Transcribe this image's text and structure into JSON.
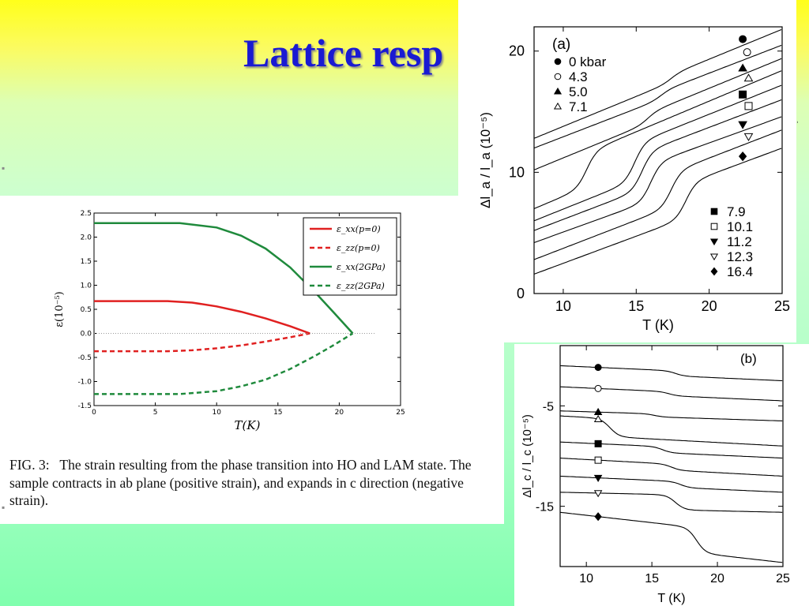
{
  "slide": {
    "title": "Lattice resp"
  },
  "caption": {
    "label": "FIG. 3:",
    "body": "The strain resulting from the phase transition into HO and LAM state. The sample contracts in ab plane (positive strain), and expands in c direction (negative strain)."
  },
  "chart_data": [
    {
      "type": "line",
      "xlabel": "T(K)",
      "ylabel": "ε(10⁻⁵)",
      "xlim": [
        0,
        25
      ],
      "ylim": [
        -1.5,
        2.5
      ],
      "xticks": [
        0,
        5,
        10,
        15,
        20,
        25
      ],
      "yticks": [
        -1.5,
        -1.0,
        -0.5,
        0.0,
        0.5,
        1.0,
        1.5,
        2.0,
        2.5
      ],
      "grid": false,
      "legend_position": "top-right",
      "series": [
        {
          "name": "ε_xx(p=0)",
          "color": "#e02020",
          "style": "solid",
          "x": [
            0,
            6,
            8,
            10,
            12,
            14,
            16,
            17.6
          ],
          "y": [
            0.67,
            0.67,
            0.64,
            0.56,
            0.45,
            0.31,
            0.15,
            0.0
          ]
        },
        {
          "name": "ε_zz(p=0)",
          "color": "#e02020",
          "style": "dashed",
          "x": [
            0,
            6,
            8,
            10,
            12,
            14,
            16,
            17.6
          ],
          "y": [
            -0.37,
            -0.37,
            -0.35,
            -0.31,
            -0.25,
            -0.17,
            -0.08,
            0.0
          ]
        },
        {
          "name": "ε_xx(2GPa)",
          "color": "#1f8a3c",
          "style": "solid",
          "x": [
            0,
            7,
            10,
            12,
            14,
            16,
            18,
            19.5,
            21.1
          ],
          "y": [
            2.29,
            2.29,
            2.2,
            2.03,
            1.76,
            1.37,
            0.86,
            0.45,
            0.0
          ]
        },
        {
          "name": "ε_zz(2GPa)",
          "color": "#1f8a3c",
          "style": "dashed",
          "x": [
            0,
            7,
            10,
            12,
            14,
            16,
            18,
            19.5,
            21.1
          ],
          "y": [
            -1.26,
            -1.26,
            -1.2,
            -1.1,
            -0.96,
            -0.74,
            -0.47,
            -0.25,
            0.0
          ]
        },
        {
          "name": "",
          "color": "#999999",
          "style": "dotted",
          "x": [
            0,
            23
          ],
          "y": [
            0,
            0
          ]
        }
      ]
    },
    {
      "type": "line",
      "panel_label": "(a)",
      "xlabel": "T (K)",
      "ylabel": "Δl_a / l_a (10⁻⁵)",
      "xlim": [
        8,
        25
      ],
      "ylim": [
        0,
        22
      ],
      "xticks": [
        10,
        15,
        20,
        25
      ],
      "yticks": [
        0,
        10,
        20
      ],
      "grid": false,
      "legend_top_left": [
        {
          "marker": "filled-circle",
          "label": "0 kbar"
        },
        {
          "marker": "open-circle",
          "label": "4.3"
        },
        {
          "marker": "filled-triangle-up",
          "label": "5.0"
        },
        {
          "marker": "open-triangle-up",
          "label": "7.1"
        }
      ],
      "legend_bottom_right": [
        {
          "marker": "filled-square",
          "label": "7.9"
        },
        {
          "marker": "open-square",
          "label": "10.1"
        },
        {
          "marker": "filled-triangle-down",
          "label": "11.2"
        },
        {
          "marker": "open-triangle-down",
          "label": "12.3"
        },
        {
          "marker": "filled-diamond",
          "label": "16.4"
        }
      ],
      "series": [
        {
          "name": "0 kbar",
          "marker": "filled-circle",
          "marker_x": 22.3,
          "Tc": 17.4,
          "start": 12.8,
          "end": 21.8,
          "jump": 0.6
        },
        {
          "name": "4.3",
          "marker": "open-circle",
          "marker_x": 22.6,
          "Tc": 16.7,
          "start": 12.0,
          "end": 20.5,
          "jump": 0.6
        },
        {
          "name": "5.0",
          "marker": "filled-triangle-up",
          "marker_x": 22.3,
          "Tc": 15.8,
          "start": 10.2,
          "end": 19.4,
          "jump": 0.8
        },
        {
          "name": "7.1",
          "marker": "open-triangle-up",
          "marker_x": 22.7,
          "Tc": 11.6,
          "start": 7.0,
          "end": 18.4,
          "jump": 2.8
        },
        {
          "name": "7.9",
          "marker": "filled-square",
          "marker_x": 22.3,
          "Tc": 14.9,
          "start": 6.0,
          "end": 17.2,
          "jump": 3.0
        },
        {
          "name": "10.1",
          "marker": "open-square",
          "marker_x": 22.7,
          "Tc": 15.4,
          "start": 5.2,
          "end": 16.0,
          "jump": 3.0
        },
        {
          "name": "11.2",
          "marker": "filled-triangle-down",
          "marker_x": 22.3,
          "Tc": 16.0,
          "start": 4.2,
          "end": 14.6,
          "jump": 3.0
        },
        {
          "name": "12.3",
          "marker": "open-triangle-down",
          "marker_x": 22.7,
          "Tc": 17.4,
          "start": 2.8,
          "end": 13.5,
          "jump": 2.8
        },
        {
          "name": "16.4",
          "marker": "filled-diamond",
          "marker_x": 22.3,
          "Tc": 18.4,
          "start": 1.6,
          "end": 12.0,
          "jump": 2.8
        }
      ]
    },
    {
      "type": "line",
      "panel_label": "(b)",
      "xlabel": "T (K)",
      "ylabel": "Δl_c / l_c (10⁻⁵)",
      "xlim": [
        8,
        25
      ],
      "ylim": [
        -21,
        1
      ],
      "xticks": [
        10,
        15,
        20,
        25
      ],
      "yticks": [
        -5,
        -15
      ],
      "grid": false,
      "series": [
        {
          "name": "0 kbar",
          "marker": "filled-circle",
          "marker_x": 10.9,
          "start": -1.0,
          "end": -2.5,
          "Tc": 16.8,
          "drop": 0.5
        },
        {
          "name": "4.3",
          "marker": "open-circle",
          "marker_x": 10.9,
          "start": -3.1,
          "end": -4.5,
          "Tc": 16.3,
          "drop": 0.4
        },
        {
          "name": "5.0",
          "marker": "filled-triangle-up",
          "marker_x": 10.9,
          "start": -5.5,
          "end": -6.5,
          "Tc": 15.2,
          "drop": 0.3
        },
        {
          "name": "7.1",
          "marker": "open-triangle-up",
          "marker_x": 10.9,
          "start": -6.0,
          "end": -9.0,
          "Tc": 11.8,
          "drop": 1.8
        },
        {
          "name": "7.9",
          "marker": "filled-square",
          "marker_x": 10.9,
          "start": -8.6,
          "end": -10.2,
          "Tc": 15.8,
          "drop": 0.6
        },
        {
          "name": "10.1",
          "marker": "open-square",
          "marker_x": 10.9,
          "start": -10.2,
          "end": -12.0,
          "Tc": 16.5,
          "drop": 0.6
        },
        {
          "name": "11.2",
          "marker": "filled-triangle-down",
          "marker_x": 10.9,
          "start": -12.0,
          "end": -13.6,
          "Tc": 17.2,
          "drop": 0.6
        },
        {
          "name": "12.3",
          "marker": "open-triangle-down",
          "marker_x": 10.9,
          "start": -13.6,
          "end": -15.6,
          "Tc": 16.8,
          "drop": 1.5
        },
        {
          "name": "16.4",
          "marker": "filled-diamond",
          "marker_x": 10.9,
          "start": -15.6,
          "end": -20.6,
          "Tc": 18.4,
          "drop": 2.5
        }
      ]
    }
  ]
}
